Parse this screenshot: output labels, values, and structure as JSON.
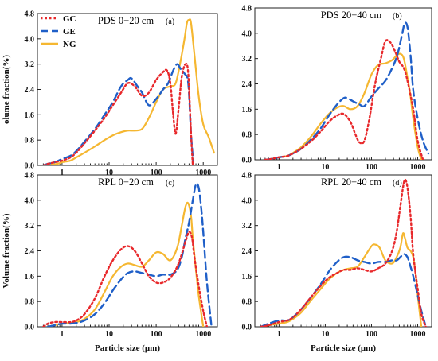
{
  "chart_data": [
    {
      "type": "line",
      "title": "PDS 0−20 cm",
      "tag": "(a)",
      "ylabel": "olume fraction(%)",
      "xlabel": "",
      "xscale": "log",
      "xlim": [
        0.3,
        2000
      ],
      "ylim": [
        0,
        4.8
      ],
      "yticks": [
        "0.0",
        "0.8",
        "1.6",
        "2.4",
        "3.2",
        "4.0",
        "4.8"
      ],
      "xticks": [
        "1",
        "10",
        "100",
        "1000"
      ],
      "legend": {
        "position": "top-left",
        "entries": [
          "GC",
          "GE",
          "NG"
        ]
      },
      "series": [
        {
          "name": "GC",
          "color": "#e8282b",
          "dash": "dot",
          "x": [
            0.4,
            0.5,
            0.7,
            1,
            1.5,
            2,
            3,
            5,
            8,
            12,
            18,
            25,
            35,
            50,
            70,
            100,
            140,
            170,
            200,
            230,
            260,
            300,
            350,
            420,
            480,
            550,
            600
          ],
          "y": [
            0,
            0.05,
            0.1,
            0.15,
            0.25,
            0.4,
            0.7,
            1.1,
            1.5,
            1.9,
            2.3,
            2.6,
            2.5,
            2.2,
            2.3,
            2.7,
            2.95,
            3.0,
            2.6,
            1.6,
            1.0,
            1.8,
            2.8,
            3.2,
            2.9,
            1.0,
            0
          ]
        },
        {
          "name": "GE",
          "color": "#1f5fc8",
          "dash": "dash",
          "x": [
            0.4,
            0.5,
            0.7,
            1,
            1.5,
            2,
            3,
            5,
            8,
            12,
            18,
            25,
            30,
            40,
            50,
            70,
            100,
            140,
            180,
            230,
            280,
            330,
            400,
            480,
            550,
            620
          ],
          "y": [
            0,
            0.05,
            0.1,
            0.2,
            0.3,
            0.45,
            0.75,
            1.15,
            1.6,
            2.0,
            2.5,
            2.7,
            2.75,
            2.5,
            2.3,
            1.9,
            2.1,
            2.4,
            2.6,
            3.0,
            3.2,
            3.05,
            2.9,
            2.6,
            1.0,
            0
          ]
        },
        {
          "name": "NG",
          "color": "#f5b731",
          "dash": "solid",
          "x": [
            0.5,
            0.8,
            1,
            1.5,
            2,
            3,
            5,
            8,
            12,
            18,
            25,
            35,
            50,
            70,
            100,
            140,
            200,
            260,
            330,
            400,
            450,
            500,
            550,
            650,
            800,
            1000,
            1300,
            1700
          ],
          "y": [
            0,
            0.05,
            0.1,
            0.15,
            0.25,
            0.4,
            0.6,
            0.8,
            0.95,
            1.05,
            1.1,
            1.1,
            1.15,
            1.5,
            2.0,
            2.4,
            2.5,
            2.6,
            3.3,
            4.0,
            4.5,
            4.6,
            4.5,
            3.5,
            2.2,
            1.3,
            0.9,
            0.4
          ]
        }
      ]
    },
    {
      "type": "line",
      "title": "PDS 20−40 cm",
      "tag": "(b)",
      "ylabel": "",
      "xlabel": "",
      "xscale": "log",
      "xlim": [
        0.3,
        2000
      ],
      "ylim": [
        0,
        4.8
      ],
      "yticks": [
        "0.0",
        "0.8",
        "1.6",
        "2.4",
        "3.2",
        "4.0",
        "4.8"
      ],
      "xticks": [
        "1",
        "10",
        "100",
        "1000"
      ],
      "series": [
        {
          "name": "GC",
          "color": "#e8282b",
          "dash": "dot",
          "x": [
            0.5,
            0.7,
            1,
            1.5,
            2,
            3,
            5,
            8,
            12,
            18,
            25,
            35,
            45,
            55,
            70,
            90,
            120,
            160,
            200,
            260,
            330,
            400,
            500,
            600,
            800,
            1000,
            1300
          ],
          "y": [
            0,
            0.03,
            0.08,
            0.12,
            0.2,
            0.35,
            0.6,
            0.9,
            1.2,
            1.4,
            1.45,
            1.2,
            0.8,
            0.55,
            0.6,
            1.3,
            2.4,
            3.2,
            3.75,
            3.7,
            3.4,
            3.1,
            2.9,
            2.5,
            1.6,
            0.6,
            0
          ]
        },
        {
          "name": "GE",
          "color": "#1f5fc8",
          "dash": "dash",
          "x": [
            0.5,
            0.7,
            1,
            1.5,
            2,
            3,
            5,
            8,
            12,
            18,
            25,
            30,
            40,
            55,
            70,
            100,
            140,
            200,
            280,
            360,
            450,
            520,
            600,
            700,
            800,
            1000,
            1300,
            1700
          ],
          "y": [
            0,
            0.03,
            0.08,
            0.12,
            0.2,
            0.35,
            0.65,
            1.0,
            1.4,
            1.75,
            1.95,
            1.95,
            1.85,
            1.75,
            1.7,
            2.0,
            2.25,
            2.5,
            2.9,
            3.3,
            3.9,
            4.3,
            4.2,
            3.3,
            2.2,
            1.3,
            0.6,
            0.2
          ]
        },
        {
          "name": "NG",
          "color": "#f5b731",
          "dash": "solid",
          "x": [
            0.5,
            0.7,
            1,
            1.5,
            2,
            3,
            5,
            8,
            12,
            18,
            25,
            35,
            50,
            70,
            100,
            140,
            200,
            280,
            350,
            420,
            500,
            600,
            700,
            800,
            1000,
            1200
          ],
          "y": [
            0,
            0.03,
            0.08,
            0.12,
            0.22,
            0.4,
            0.75,
            1.15,
            1.45,
            1.65,
            1.7,
            1.6,
            1.7,
            2.1,
            2.7,
            3.0,
            3.05,
            3.15,
            3.3,
            3.35,
            3.2,
            2.6,
            2.0,
            1.3,
            0.4,
            0
          ]
        }
      ]
    },
    {
      "type": "line",
      "title": "RPL 0−20 cm",
      "tag": "(c)",
      "ylabel": "Volume fraction(%)",
      "xlabel": "Particle size (μm)",
      "xscale": "log",
      "xlim": [
        0.3,
        2000
      ],
      "ylim": [
        0,
        4.8
      ],
      "yticks": [
        "0.0",
        "0.8",
        "1.6",
        "2.4",
        "3.2",
        "4.0",
        "4.8"
      ],
      "xticks": [
        "1",
        "10",
        "100",
        "1000"
      ],
      "series": [
        {
          "name": "GC",
          "color": "#e8282b",
          "dash": "dot",
          "x": [
            0.4,
            0.5,
            0.7,
            1,
            1.5,
            2,
            3,
            5,
            8,
            12,
            18,
            25,
            35,
            50,
            70,
            100,
            140,
            200,
            280,
            350,
            420,
            500,
            580,
            650,
            800,
            1000,
            1200
          ],
          "y": [
            0,
            0.1,
            0.15,
            0.15,
            0.15,
            0.2,
            0.4,
            0.9,
            1.6,
            2.1,
            2.45,
            2.55,
            2.4,
            2.0,
            1.6,
            1.4,
            1.4,
            1.55,
            1.9,
            2.3,
            2.7,
            3.0,
            2.8,
            2.2,
            1.3,
            0.5,
            0
          ]
        },
        {
          "name": "GE",
          "color": "#1f5fc8",
          "dash": "dash",
          "x": [
            0.5,
            0.7,
            1,
            1.5,
            2,
            3,
            5,
            8,
            12,
            18,
            25,
            35,
            50,
            70,
            100,
            140,
            200,
            280,
            350,
            420,
            500,
            600,
            700,
            800,
            900,
            1000,
            1200,
            1500
          ],
          "y": [
            0,
            0.05,
            0.1,
            0.1,
            0.12,
            0.2,
            0.4,
            0.75,
            1.15,
            1.5,
            1.7,
            1.75,
            1.7,
            1.65,
            1.6,
            1.65,
            1.65,
            1.8,
            2.2,
            2.8,
            3.3,
            4.0,
            4.5,
            4.4,
            3.8,
            3.0,
            1.4,
            0
          ]
        },
        {
          "name": "NG",
          "color": "#f5b731",
          "dash": "solid",
          "x": [
            0.5,
            0.7,
            1,
            1.5,
            2,
            3,
            5,
            8,
            12,
            18,
            25,
            35,
            50,
            70,
            100,
            140,
            200,
            280,
            350,
            420,
            480,
            550,
            600,
            700,
            800,
            1000
          ],
          "y": [
            0,
            0.05,
            0.1,
            0.12,
            0.15,
            0.25,
            0.55,
            1.1,
            1.6,
            1.9,
            2.0,
            1.95,
            1.9,
            2.1,
            2.35,
            2.3,
            2.1,
            2.5,
            3.2,
            3.8,
            3.9,
            3.5,
            2.8,
            1.8,
            1.0,
            0
          ]
        }
      ]
    },
    {
      "type": "line",
      "title": "RPL 20−40 cm",
      "tag": "(d)",
      "ylabel": "",
      "xlabel": "Particle size (μm)",
      "xscale": "log",
      "xlim": [
        0.3,
        2000
      ],
      "ylim": [
        0,
        4.8
      ],
      "yticks": [
        "0.0",
        "0.8",
        "1.6",
        "2.4",
        "3.2",
        "4.0",
        "4.8"
      ],
      "xticks": [
        "1",
        "10",
        "100",
        "1000"
      ],
      "series": [
        {
          "name": "GC",
          "color": "#e8282b",
          "dash": "dot",
          "x": [
            0.4,
            0.6,
            1,
            1.5,
            2,
            3,
            5,
            8,
            12,
            18,
            25,
            35,
            50,
            70,
            100,
            140,
            200,
            280,
            350,
            420,
            480,
            530,
            600,
            700,
            800,
            1000,
            1200,
            1500
          ],
          "y": [
            0,
            0.05,
            0.15,
            0.2,
            0.3,
            0.55,
            0.95,
            1.3,
            1.55,
            1.7,
            1.8,
            1.8,
            1.85,
            1.8,
            1.75,
            1.85,
            2.0,
            2.4,
            3.0,
            3.8,
            4.4,
            4.65,
            4.4,
            3.5,
            2.3,
            1.2,
            0.4,
            0
          ]
        },
        {
          "name": "GE",
          "color": "#1f5fc8",
          "dash": "dash",
          "x": [
            0.4,
            0.6,
            1,
            1.5,
            2,
            3,
            5,
            8,
            12,
            18,
            25,
            35,
            50,
            70,
            100,
            140,
            200,
            280,
            350,
            420,
            500,
            600,
            700,
            800,
            1000,
            1200,
            1500
          ],
          "y": [
            0,
            0.1,
            0.2,
            0.2,
            0.3,
            0.55,
            0.95,
            1.35,
            1.75,
            2.05,
            2.2,
            2.2,
            2.1,
            2.05,
            2.0,
            2.05,
            2.05,
            2.1,
            2.1,
            2.2,
            2.3,
            2.2,
            1.9,
            1.6,
            1.0,
            0.5,
            0
          ]
        },
        {
          "name": "NG",
          "color": "#f5b731",
          "dash": "solid",
          "x": [
            0.4,
            0.6,
            1,
            1.5,
            2,
            3,
            5,
            8,
            12,
            18,
            25,
            35,
            50,
            70,
            100,
            120,
            150,
            200,
            280,
            350,
            420,
            480,
            530,
            600,
            700,
            800,
            900,
            1000,
            1200
          ],
          "y": [
            0,
            0.05,
            0.1,
            0.15,
            0.25,
            0.45,
            0.85,
            1.2,
            1.5,
            1.7,
            1.8,
            1.85,
            1.9,
            2.2,
            2.55,
            2.6,
            2.5,
            2.1,
            2.0,
            2.2,
            2.5,
            2.95,
            2.8,
            2.5,
            2.4,
            2.2,
            1.7,
            1.0,
            0
          ]
        }
      ]
    }
  ]
}
